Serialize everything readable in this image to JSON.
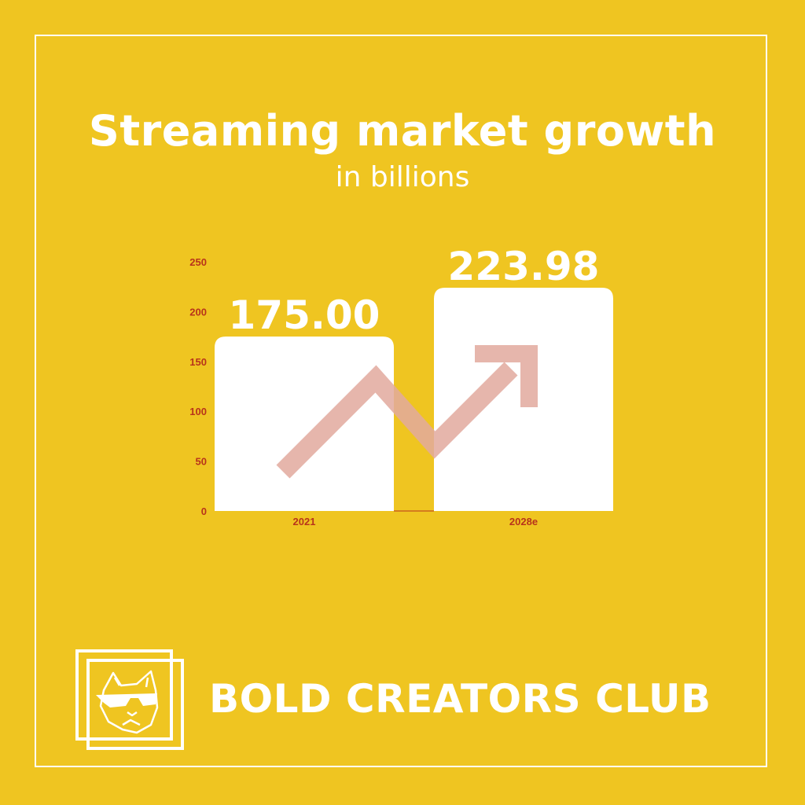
{
  "colors": {
    "background": "#EFC521",
    "bar": "#FFFFFF",
    "axis_label": "#B8341B",
    "arrow": "#E2A99D",
    "text": "#FFFFFF"
  },
  "icons": {
    "logo": "bulldog-sunglasses-icon"
  },
  "brand": {
    "name": "BOLD CREATORS CLUB"
  },
  "chart_data": {
    "type": "bar",
    "title": "Streaming market growth",
    "subtitle": "in billions",
    "categories": [
      "2021",
      "2028e"
    ],
    "values": [
      175.0,
      223.98
    ],
    "data_labels": [
      "175.00",
      "223.98"
    ],
    "ylim": [
      0,
      250
    ],
    "yticks": [
      0,
      50,
      100,
      150,
      200,
      250
    ],
    "xlabel": "",
    "ylabel": "",
    "grid": false,
    "legend": "none",
    "decoration": "upward-trend-arrow"
  }
}
